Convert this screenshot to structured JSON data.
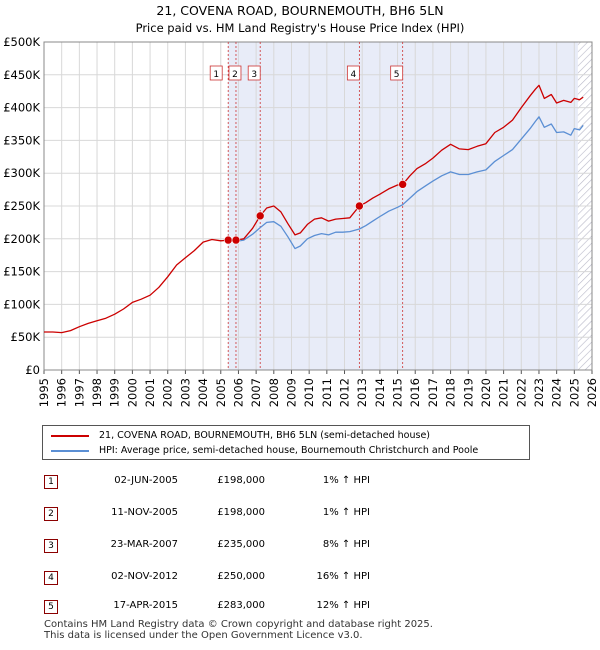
{
  "chart_data": {
    "type": "line",
    "title": "21, COVENA ROAD, BOURNEMOUTH, BH6 5LN",
    "subtitle": "Price paid vs. HM Land Registry's House Price Index (HPI)",
    "xlim": [
      1995,
      2026
    ],
    "ylim": [
      0,
      500000
    ],
    "x_ticks": [
      "1995",
      "1996",
      "1997",
      "1998",
      "1999",
      "2000",
      "2001",
      "2002",
      "2003",
      "2004",
      "2005",
      "2006",
      "2007",
      "2008",
      "2009",
      "2010",
      "2011",
      "2012",
      "2013",
      "2014",
      "2015",
      "2016",
      "2017",
      "2018",
      "2019",
      "2020",
      "2021",
      "2022",
      "2023",
      "2024",
      "2025",
      "2026"
    ],
    "y_ticks": [
      {
        "value": 0,
        "label": "£0"
      },
      {
        "value": 50000,
        "label": "£50K"
      },
      {
        "value": 100000,
        "label": "£100K"
      },
      {
        "value": 150000,
        "label": "£150K"
      },
      {
        "value": 200000,
        "label": "£200K"
      },
      {
        "value": 250000,
        "label": "£250K"
      },
      {
        "value": 300000,
        "label": "£300K"
      },
      {
        "value": 350000,
        "label": "£350K"
      },
      {
        "value": 400000,
        "label": "£400K"
      },
      {
        "value": 450000,
        "label": "£450K"
      },
      {
        "value": 500000,
        "label": "£500K"
      }
    ],
    "shaded_period": [
      2005.42,
      2025.2
    ],
    "forecast_hatch_from": 2025.2,
    "series": [
      {
        "name": "21, COVENA ROAD, BOURNEMOUTH, BH6 5LN (semi-detached house)",
        "color": "#cc0000",
        "x": [
          1995.0,
          1995.5,
          1996.0,
          1996.5,
          1997.0,
          1997.5,
          1998.0,
          1998.5,
          1999.0,
          1999.5,
          2000.0,
          2000.5,
          2001.0,
          2001.5,
          2002.0,
          2002.5,
          2003.0,
          2003.5,
          2004.0,
          2004.5,
          2005.0,
          2005.42,
          2005.86,
          2006.3,
          2006.8,
          2007.23,
          2007.6,
          2008.0,
          2008.4,
          2008.8,
          2009.2,
          2009.5,
          2009.9,
          2010.3,
          2010.7,
          2011.1,
          2011.5,
          2011.9,
          2012.3,
          2012.84,
          2013.2,
          2013.6,
          2014.0,
          2014.5,
          2015.0,
          2015.29,
          2015.7,
          2016.1,
          2016.6,
          2017.0,
          2017.5,
          2018.0,
          2018.5,
          2019.0,
          2019.5,
          2020.0,
          2020.5,
          2021.0,
          2021.5,
          2022.0,
          2022.5,
          2022.8,
          2023.0,
          2023.3,
          2023.7,
          2024.0,
          2024.4,
          2024.8,
          2025.0,
          2025.3,
          2025.5
        ],
        "values": [
          58000,
          58000,
          57000,
          60000,
          66000,
          71000,
          75000,
          79000,
          85000,
          93000,
          103000,
          108000,
          114000,
          126000,
          142000,
          160000,
          171000,
          182000,
          195000,
          199000,
          197000,
          198000,
          198000,
          200000,
          216000,
          235000,
          247000,
          250000,
          241000,
          223000,
          206000,
          209000,
          222000,
          230000,
          232000,
          227000,
          230000,
          231000,
          232000,
          250000,
          255000,
          262000,
          268000,
          276000,
          282000,
          283000,
          296000,
          307000,
          315000,
          323000,
          335000,
          344000,
          337000,
          336000,
          341000,
          345000,
          362000,
          370000,
          381000,
          400000,
          418000,
          428000,
          434000,
          414000,
          420000,
          407000,
          411000,
          408000,
          414000,
          412000,
          416000
        ]
      },
      {
        "name": "HPI: Average price, semi-detached house, Bournemouth Christchurch and Poole",
        "color": "#5b8fd4",
        "x": [
          2005.42,
          2005.86,
          2006.3,
          2006.8,
          2007.23,
          2007.6,
          2008.0,
          2008.4,
          2008.8,
          2009.2,
          2009.5,
          2009.9,
          2010.3,
          2010.7,
          2011.1,
          2011.5,
          2011.9,
          2012.3,
          2012.84,
          2013.2,
          2013.6,
          2014.0,
          2014.5,
          2015.0,
          2015.29,
          2015.7,
          2016.1,
          2016.6,
          2017.0,
          2017.5,
          2018.0,
          2018.5,
          2019.0,
          2019.5,
          2020.0,
          2020.5,
          2021.0,
          2021.5,
          2022.0,
          2022.5,
          2022.8,
          2023.0,
          2023.3,
          2023.7,
          2024.0,
          2024.4,
          2024.8,
          2025.0,
          2025.3,
          2025.5
        ],
        "values": [
          196000,
          196000,
          198000,
          207000,
          217000,
          225000,
          226000,
          219000,
          203000,
          185000,
          189000,
          200000,
          205000,
          208000,
          206000,
          210000,
          210000,
          211000,
          215000,
          220000,
          227000,
          234000,
          242000,
          248000,
          252000,
          262000,
          272000,
          281000,
          288000,
          296000,
          302000,
          298000,
          298000,
          302000,
          305000,
          318000,
          327000,
          336000,
          352000,
          368000,
          379000,
          386000,
          370000,
          375000,
          362000,
          363000,
          358000,
          368000,
          366000,
          373000
        ]
      }
    ],
    "sales": [
      {
        "label": "1",
        "date": "02-JUN-2005",
        "x": 2005.42,
        "price": 198000,
        "price_label": "£198,000",
        "hpi": "1% ↑ HPI"
      },
      {
        "label": "2",
        "date": "11-NOV-2005",
        "x": 2005.86,
        "price": 198000,
        "price_label": "£198,000",
        "hpi": "1% ↑ HPI"
      },
      {
        "label": "3",
        "date": "23-MAR-2007",
        "x": 2007.23,
        "price": 235000,
        "price_label": "£235,000",
        "hpi": "8% ↑ HPI"
      },
      {
        "label": "4",
        "date": "02-NOV-2012",
        "x": 2012.84,
        "price": 250000,
        "price_label": "£250,000",
        "hpi": "16% ↑ HPI"
      },
      {
        "label": "5",
        "date": "17-APR-2015",
        "x": 2015.29,
        "price": 283000,
        "price_label": "£283,000",
        "hpi": "12% ↑ HPI"
      }
    ]
  },
  "legend": {
    "property_label": "21, COVENA ROAD, BOURNEMOUTH, BH6 5LN (semi-detached house)",
    "hpi_label": "HPI: Average price, semi-detached house, Bournemouth Christchurch and Poole",
    "property_color": "#cc0000",
    "hpi_color": "#5b8fd4"
  },
  "footer": {
    "line1": "Contains HM Land Registry data © Crown copyright and database right 2025.",
    "line2": "This data is licensed under the Open Government Licence v3.0."
  }
}
